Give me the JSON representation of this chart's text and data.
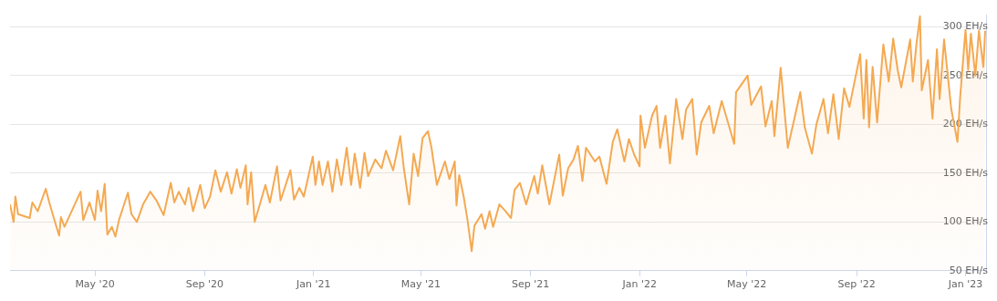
{
  "chart_data": {
    "type": "area",
    "color": "#f4a952",
    "grid": "y",
    "xlim": [
      "2020-01-27",
      "2023-01-24"
    ],
    "ylim": [
      50,
      312
    ],
    "xticks": [
      {
        "value": "2020-05-01",
        "label": "May '20"
      },
      {
        "value": "2020-09-01",
        "label": "Sep '20"
      },
      {
        "value": "2021-01-01",
        "label": "Jan '21"
      },
      {
        "value": "2021-05-01",
        "label": "May '21"
      },
      {
        "value": "2021-09-01",
        "label": "Sep '21"
      },
      {
        "value": "2022-01-01",
        "label": "Jan '22"
      },
      {
        "value": "2022-05-01",
        "label": "May '22"
      },
      {
        "value": "2022-09-01",
        "label": "Sep '22"
      },
      {
        "value": "2023-01-01",
        "label": "Jan '23"
      }
    ],
    "yticks": [
      {
        "value": 50,
        "label": "50 EH/s"
      },
      {
        "value": 100,
        "label": "100 EH/s"
      },
      {
        "value": 150,
        "label": "150 EH/s"
      },
      {
        "value": 200,
        "label": "200 EH/s"
      },
      {
        "value": 250,
        "label": "250 EH/s"
      },
      {
        "value": 300,
        "label": "300 EH/s"
      }
    ],
    "x": [
      "2020-01-27",
      "2020-01-31",
      "2020-02-02",
      "2020-02-05",
      "2020-02-18",
      "2020-02-21",
      "2020-02-27",
      "2020-03-07",
      "2020-03-11",
      "2020-03-18",
      "2020-03-22",
      "2020-03-24",
      "2020-03-28",
      "2020-04-15",
      "2020-04-18",
      "2020-04-25",
      "2020-05-01",
      "2020-05-04",
      "2020-05-08",
      "2020-05-12",
      "2020-05-15",
      "2020-05-20",
      "2020-05-24",
      "2020-05-28",
      "2020-06-07",
      "2020-06-11",
      "2020-06-17",
      "2020-06-24",
      "2020-07-02",
      "2020-07-09",
      "2020-07-17",
      "2020-07-25",
      "2020-07-29",
      "2020-08-03",
      "2020-08-10",
      "2020-08-14",
      "2020-08-19",
      "2020-08-27",
      "2020-09-01",
      "2020-09-07",
      "2020-09-13",
      "2020-09-19",
      "2020-09-26",
      "2020-10-01",
      "2020-10-07",
      "2020-10-11",
      "2020-10-17",
      "2020-10-19",
      "2020-10-23",
      "2020-10-27",
      "2020-11-03",
      "2020-11-08",
      "2020-11-13",
      "2020-11-21",
      "2020-11-25",
      "2020-12-06",
      "2020-12-10",
      "2020-12-16",
      "2020-12-21",
      "2020-12-31",
      "2021-01-03",
      "2021-01-07",
      "2021-01-11",
      "2021-01-17",
      "2021-01-22",
      "2021-01-27",
      "2021-02-01",
      "2021-02-07",
      "2021-02-12",
      "2021-02-16",
      "2021-02-22",
      "2021-02-27",
      "2021-03-03",
      "2021-03-11",
      "2021-03-18",
      "2021-03-23",
      "2021-03-31",
      "2021-04-08",
      "2021-04-12",
      "2021-04-18",
      "2021-04-23",
      "2021-04-28",
      "2021-05-03",
      "2021-05-09",
      "2021-05-13",
      "2021-05-19",
      "2021-05-28",
      "2021-06-02",
      "2021-06-08",
      "2021-06-10",
      "2021-06-13",
      "2021-06-18",
      "2021-06-22",
      "2021-06-27",
      "2021-06-30",
      "2021-07-08",
      "2021-07-12",
      "2021-07-17",
      "2021-07-21",
      "2021-07-28",
      "2021-08-04",
      "2021-08-10",
      "2021-08-14",
      "2021-08-20",
      "2021-08-27",
      "2021-09-05",
      "2021-09-09",
      "2021-09-14",
      "2021-09-22",
      "2021-10-03",
      "2021-10-07",
      "2021-10-13",
      "2021-10-19",
      "2021-10-24",
      "2021-10-29",
      "2021-11-02",
      "2021-11-12",
      "2021-11-17",
      "2021-11-25",
      "2021-12-02",
      "2021-12-07",
      "2021-12-15",
      "2021-12-20",
      "2021-12-26",
      "2022-01-01",
      "2022-01-02",
      "2022-01-07",
      "2022-01-15",
      "2022-01-20",
      "2022-01-24",
      "2022-01-30",
      "2022-02-04",
      "2022-02-11",
      "2022-02-18",
      "2022-02-22",
      "2022-03-01",
      "2022-03-06",
      "2022-03-11",
      "2022-03-20",
      "2022-03-25",
      "2022-04-03",
      "2022-04-17",
      "2022-04-19",
      "2022-05-02",
      "2022-05-06",
      "2022-05-17",
      "2022-05-22",
      "2022-05-29",
      "2022-06-01",
      "2022-06-08",
      "2022-06-16",
      "2022-06-30",
      "2022-07-05",
      "2022-07-13",
      "2022-07-18",
      "2022-07-26",
      "2022-07-31",
      "2022-08-06",
      "2022-08-12",
      "2022-08-18",
      "2022-08-24",
      "2022-09-05",
      "2022-09-09",
      "2022-09-12",
      "2022-09-15",
      "2022-09-19",
      "2022-09-24",
      "2022-10-01",
      "2022-10-07",
      "2022-10-12",
      "2022-10-17",
      "2022-10-21",
      "2022-10-31",
      "2022-11-03",
      "2022-11-07",
      "2022-11-11",
      "2022-11-13",
      "2022-11-20",
      "2022-11-25",
      "2022-11-30",
      "2022-12-03",
      "2022-12-08",
      "2022-12-16",
      "2022-12-23",
      "2022-12-26",
      "2023-01-01",
      "2023-01-04",
      "2023-01-07",
      "2023-01-12",
      "2023-01-16",
      "2023-01-21",
      "2023-01-23"
    ],
    "values": [
      118,
      100,
      126,
      108,
      104,
      120,
      111,
      134,
      120,
      98,
      86,
      105,
      95,
      131,
      102,
      120,
      102,
      132,
      111,
      139,
      87,
      95,
      85,
      102,
      130,
      108,
      100,
      118,
      131,
      122,
      107,
      140,
      120,
      131,
      118,
      135,
      111,
      138,
      114,
      126,
      153,
      131,
      151,
      129,
      154,
      135,
      158,
      118,
      151,
      100,
      122,
      138,
      120,
      157,
      122,
      153,
      123,
      135,
      126,
      167,
      138,
      162,
      138,
      162,
      131,
      164,
      138,
      176,
      138,
      170,
      135,
      171,
      147,
      164,
      155,
      173,
      153,
      188,
      155,
      118,
      170,
      147,
      186,
      193,
      176,
      138,
      162,
      144,
      162,
      117,
      148,
      126,
      104,
      70,
      96,
      108,
      93,
      111,
      95,
      118,
      111,
      104,
      133,
      140,
      118,
      147,
      129,
      158,
      118,
      169,
      127,
      155,
      164,
      178,
      142,
      176,
      162,
      167,
      139,
      182,
      195,
      162,
      185,
      169,
      157,
      209,
      176,
      209,
      219,
      176,
      209,
      160,
      226,
      185,
      215,
      226,
      169,
      202,
      219,
      191,
      224,
      180,
      233,
      250,
      220,
      239,
      198,
      224,
      188,
      258,
      176,
      233,
      197,
      170,
      200,
      226,
      191,
      231,
      185,
      237,
      218,
      272,
      206,
      266,
      197,
      259,
      202,
      282,
      244,
      288,
      256,
      238,
      287,
      244,
      282,
      311,
      235,
      266,
      206,
      277,
      226,
      287,
      216,
      182,
      228,
      297,
      256,
      293,
      250,
      296,
      259,
      296
    ]
  }
}
